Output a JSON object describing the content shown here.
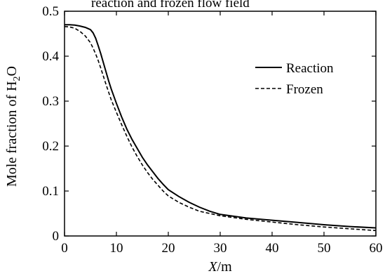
{
  "chart_data": {
    "type": "line",
    "title_clipped": "reaction and frozen flow field",
    "xlabel_italic": "X",
    "xlabel_unit": "/m",
    "ylabel_prefix": "Mole fraction of H",
    "ylabel_sub": "2",
    "ylabel_suffix": "O",
    "xlim": [
      0,
      60
    ],
    "ylim": [
      0,
      0.5
    ],
    "xticks": [
      0,
      10,
      20,
      30,
      40,
      50,
      60
    ],
    "yticks": [
      0,
      0.1,
      0.2,
      0.3,
      0.4,
      0.5
    ],
    "xtick_labels": [
      "0",
      "10",
      "20",
      "30",
      "40",
      "50",
      "60"
    ],
    "ytick_labels": [
      "0",
      "0.1",
      "0.2",
      "0.3",
      "0.4",
      "0.5"
    ],
    "legend_position": "top-right",
    "series": [
      {
        "name": "Reaction",
        "style": "solid",
        "x": [
          0,
          1,
          2,
          3,
          4,
          5,
          5.5,
          6,
          6.5,
          7,
          7.5,
          8,
          8.5,
          9,
          10,
          11,
          12,
          13,
          14,
          15,
          16,
          17,
          18,
          19,
          20,
          22,
          24,
          26,
          28,
          30,
          35,
          40,
          45,
          50,
          55,
          60
        ],
        "y": [
          0.47,
          0.47,
          0.469,
          0.467,
          0.464,
          0.459,
          0.452,
          0.44,
          0.423,
          0.405,
          0.385,
          0.365,
          0.345,
          0.327,
          0.295,
          0.265,
          0.238,
          0.215,
          0.195,
          0.175,
          0.158,
          0.143,
          0.128,
          0.115,
          0.103,
          0.088,
          0.075,
          0.064,
          0.055,
          0.048,
          0.04,
          0.035,
          0.03,
          0.025,
          0.021,
          0.018
        ]
      },
      {
        "name": "Frozen",
        "style": "dashed",
        "x": [
          0,
          1,
          2,
          3,
          4,
          5,
          5.5,
          6,
          6.5,
          7,
          7.5,
          8,
          8.5,
          9,
          10,
          11,
          12,
          13,
          14,
          15,
          16,
          17,
          18,
          19,
          20,
          22,
          24,
          26,
          28,
          30,
          35,
          40,
          45,
          50,
          55,
          60
        ],
        "y": [
          0.466,
          0.465,
          0.462,
          0.455,
          0.445,
          0.43,
          0.418,
          0.405,
          0.39,
          0.373,
          0.355,
          0.337,
          0.32,
          0.303,
          0.275,
          0.248,
          0.222,
          0.198,
          0.177,
          0.158,
          0.141,
          0.126,
          0.113,
          0.1,
          0.089,
          0.075,
          0.064,
          0.055,
          0.05,
          0.045,
          0.037,
          0.031,
          0.025,
          0.02,
          0.016,
          0.012
        ]
      }
    ]
  }
}
